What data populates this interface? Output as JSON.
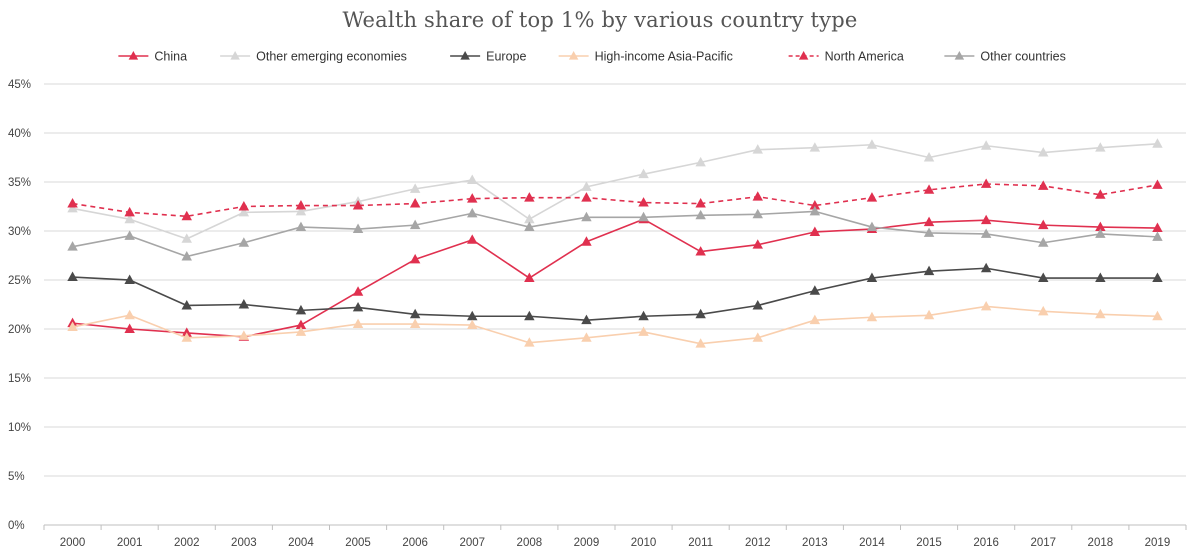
{
  "chart_data": {
    "type": "line",
    "title": "Wealth share of top 1% by various country type",
    "xlabel": "",
    "ylabel": "",
    "x": [
      "2000",
      "2001",
      "2002",
      "2003",
      "2004",
      "2005",
      "2006",
      "2007",
      "2008",
      "2009",
      "2010",
      "2011",
      "2012",
      "2013",
      "2014",
      "2015",
      "2016",
      "2017",
      "2018",
      "2019"
    ],
    "ylim": [
      0,
      45
    ],
    "yticks": [
      0,
      5,
      10,
      15,
      20,
      25,
      30,
      35,
      40,
      45
    ],
    "ytick_labels": [
      "0%",
      "5%",
      "10%",
      "15%",
      "20%",
      "25%",
      "30%",
      "35%",
      "40%",
      "45%"
    ],
    "grid": "horizontal",
    "legend_position": "top",
    "series": [
      {
        "name": "China",
        "color": "#e0304f",
        "dash": false,
        "marker": "triangle",
        "values": [
          20.6,
          20.0,
          19.6,
          19.2,
          20.4,
          23.8,
          27.1,
          29.1,
          25.2,
          28.9,
          31.2,
          27.9,
          28.6,
          29.9,
          30.2,
          30.9,
          31.1,
          30.6,
          30.4,
          30.3
        ]
      },
      {
        "name": "Other emerging economies",
        "color": "#d6d6d6",
        "dash": false,
        "marker": "triangle",
        "values": [
          32.3,
          31.2,
          29.2,
          31.9,
          32.0,
          33.0,
          34.3,
          35.2,
          31.2,
          34.5,
          35.8,
          37.0,
          38.3,
          38.5,
          38.8,
          37.5,
          38.7,
          38.0,
          38.5,
          38.9
        ]
      },
      {
        "name": "Europe",
        "color": "#4a4a4a",
        "dash": false,
        "marker": "triangle",
        "values": [
          25.3,
          25.0,
          22.4,
          22.5,
          21.9,
          22.2,
          21.5,
          21.3,
          21.3,
          20.9,
          21.3,
          21.5,
          22.4,
          23.9,
          25.2,
          25.9,
          26.2,
          25.2,
          25.2,
          25.2
        ]
      },
      {
        "name": "High-income Asia-Pacific",
        "color": "#f9cfae",
        "dash": false,
        "marker": "triangle",
        "values": [
          20.2,
          21.4,
          19.1,
          19.3,
          19.7,
          20.5,
          20.5,
          20.4,
          18.6,
          19.1,
          19.7,
          18.5,
          19.1,
          20.9,
          21.2,
          21.4,
          22.3,
          21.8,
          21.5,
          21.3
        ]
      },
      {
        "name": "North America",
        "color": "#e0304f",
        "dash": true,
        "marker": "triangle",
        "values": [
          32.8,
          31.9,
          31.5,
          32.5,
          32.6,
          32.6,
          32.8,
          33.3,
          33.4,
          33.4,
          32.9,
          32.8,
          33.5,
          32.6,
          33.4,
          34.2,
          34.8,
          34.6,
          33.7,
          34.7
        ]
      },
      {
        "name": "Other countries",
        "color": "#a6a6a6",
        "dash": false,
        "marker": "triangle",
        "values": [
          28.4,
          29.5,
          27.4,
          28.8,
          30.4,
          30.2,
          30.6,
          31.8,
          30.4,
          31.4,
          31.4,
          31.6,
          31.7,
          32.0,
          30.4,
          29.8,
          29.7,
          28.8,
          29.7,
          29.4
        ]
      }
    ]
  }
}
